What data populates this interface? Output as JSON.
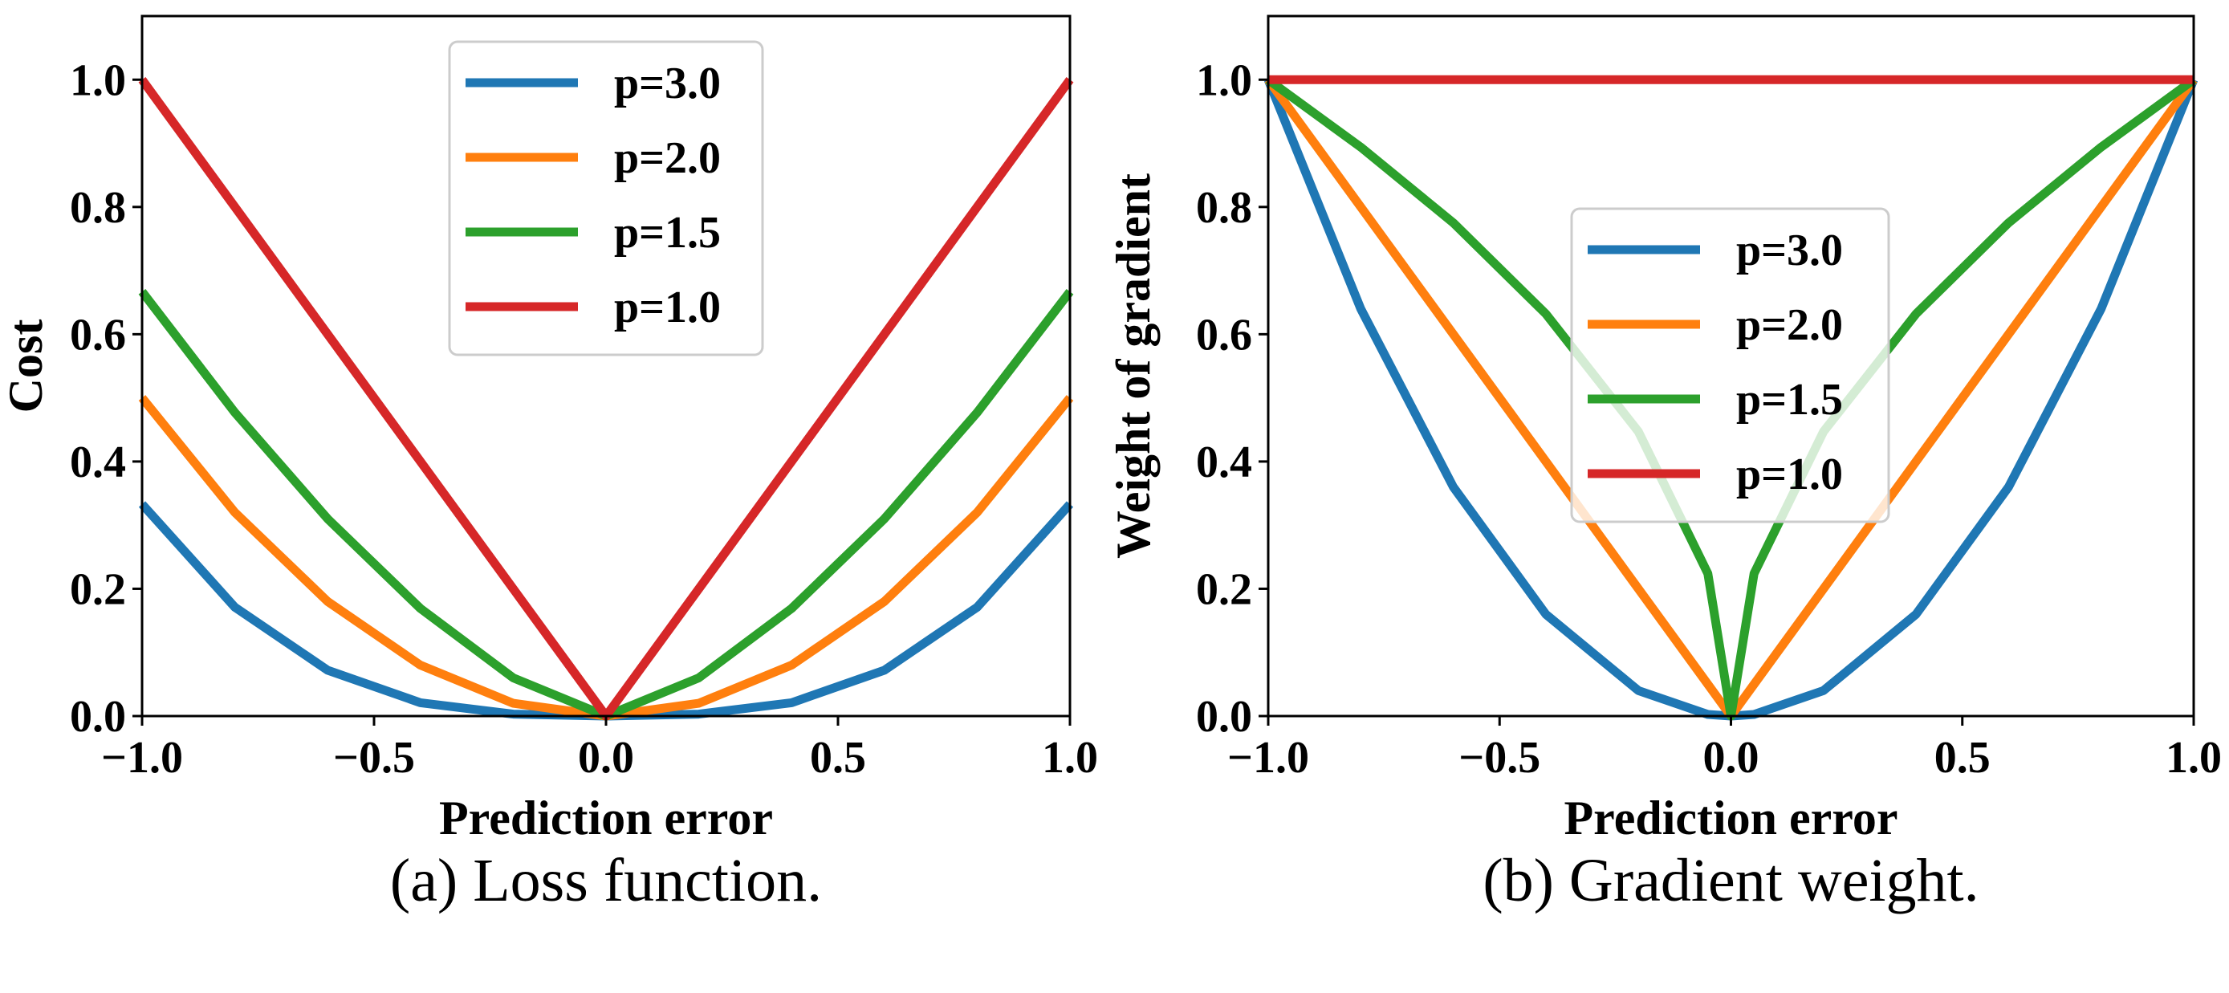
{
  "chart_data": [
    {
      "type": "line",
      "caption": "(a) Loss function.",
      "xlabel": "Prediction error",
      "ylabel": "Cost",
      "xlim": [
        -1.0,
        1.0
      ],
      "ylim": [
        0.0,
        1.1
      ],
      "xticks": [
        -1.0,
        -0.5,
        0.0,
        0.5,
        1.0
      ],
      "xtick_labels": [
        "−1.0",
        "−0.5",
        "0.0",
        "0.5",
        "1.0"
      ],
      "yticks": [
        0.0,
        0.2,
        0.4,
        0.6,
        0.8,
        1.0
      ],
      "ytick_labels": [
        "0.0",
        "0.2",
        "0.4",
        "0.6",
        "0.8",
        "1.0"
      ],
      "grid": false,
      "legend_position": "top-center",
      "x": [
        -1.0,
        -0.8,
        -0.6,
        -0.4,
        -0.2,
        0.0,
        0.2,
        0.4,
        0.6,
        0.8,
        1.0
      ],
      "series": [
        {
          "name": "p=3.0",
          "color": "#1f77b4",
          "values": [
            0.333,
            0.171,
            0.072,
            0.021,
            0.003,
            0.0,
            0.003,
            0.021,
            0.072,
            0.171,
            0.333
          ]
        },
        {
          "name": "p=2.0",
          "color": "#ff7f0e",
          "values": [
            0.5,
            0.32,
            0.18,
            0.08,
            0.02,
            0.0,
            0.02,
            0.08,
            0.18,
            0.32,
            0.5
          ]
        },
        {
          "name": "p=1.5",
          "color": "#2ca02c",
          "values": [
            0.667,
            0.477,
            0.31,
            0.169,
            0.06,
            0.0,
            0.06,
            0.169,
            0.31,
            0.477,
            0.667
          ]
        },
        {
          "name": "p=1.0",
          "color": "#d62728",
          "values": [
            1.0,
            0.8,
            0.6,
            0.4,
            0.2,
            0.0,
            0.2,
            0.4,
            0.6,
            0.8,
            1.0
          ]
        }
      ]
    },
    {
      "type": "line",
      "caption": "(b) Gradient weight.",
      "xlabel": "Prediction error",
      "ylabel": "Weight of gradient",
      "xlim": [
        -1.0,
        1.0
      ],
      "ylim": [
        0.0,
        1.1
      ],
      "xticks": [
        -1.0,
        -0.5,
        0.0,
        0.5,
        1.0
      ],
      "xtick_labels": [
        "−1.0",
        "−0.5",
        "0.0",
        "0.5",
        "1.0"
      ],
      "yticks": [
        0.0,
        0.2,
        0.4,
        0.6,
        0.8,
        1.0
      ],
      "ytick_labels": [
        "0.0",
        "0.2",
        "0.4",
        "0.6",
        "0.8",
        "1.0"
      ],
      "grid": false,
      "legend_position": "center",
      "x": [
        -1.0,
        -0.8,
        -0.6,
        -0.4,
        -0.2,
        -0.05,
        0.0,
        0.05,
        0.2,
        0.4,
        0.6,
        0.8,
        1.0
      ],
      "series": [
        {
          "name": "p=3.0",
          "color": "#1f77b4",
          "values": [
            1.0,
            0.64,
            0.36,
            0.16,
            0.04,
            0.0025,
            0.0,
            0.0025,
            0.04,
            0.16,
            0.36,
            0.64,
            1.0
          ]
        },
        {
          "name": "p=2.0",
          "color": "#ff7f0e",
          "values": [
            1.0,
            0.8,
            0.6,
            0.4,
            0.2,
            0.05,
            0.0,
            0.05,
            0.2,
            0.4,
            0.6,
            0.8,
            1.0
          ]
        },
        {
          "name": "p=1.5",
          "color": "#2ca02c",
          "values": [
            1.0,
            0.894,
            0.775,
            0.632,
            0.447,
            0.224,
            0.0,
            0.224,
            0.447,
            0.632,
            0.775,
            0.894,
            1.0
          ]
        },
        {
          "name": "p=1.0",
          "color": "#d62728",
          "values": [
            1.0,
            1.0,
            1.0,
            1.0,
            1.0,
            1.0,
            1.0,
            1.0,
            1.0,
            1.0,
            1.0,
            1.0,
            1.0
          ]
        }
      ]
    }
  ]
}
